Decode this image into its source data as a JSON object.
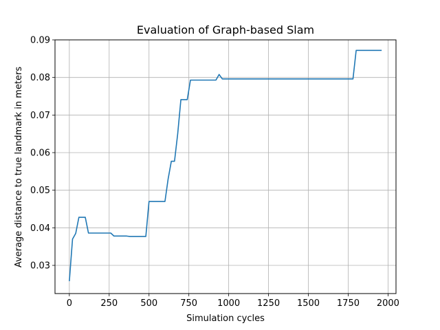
{
  "chart_data": {
    "type": "line",
    "title": "Evaluation of Graph-based Slam",
    "xlabel": "Simulation cycles",
    "ylabel": "Average distance to true landmark in meters",
    "xlim": [
      -90,
      2050
    ],
    "ylim": [
      0.0225,
      0.09
    ],
    "xticks": [
      0,
      250,
      500,
      750,
      1000,
      1250,
      1500,
      1750,
      2000
    ],
    "yticks": [
      0.03,
      0.04,
      0.05,
      0.06,
      0.07,
      0.08,
      0.09
    ],
    "xtick_labels": [
      "0",
      "250",
      "500",
      "750",
      "1000",
      "1250",
      "1500",
      "1750",
      "2000"
    ],
    "ytick_labels": [
      "0.03",
      "0.04",
      "0.05",
      "0.06",
      "0.07",
      "0.08",
      "0.09"
    ],
    "grid": true,
    "line_color": "#1f77b4",
    "series": [
      {
        "x": [
          0,
          20,
          40,
          60,
          80,
          100,
          120,
          140,
          160,
          180,
          200,
          220,
          240,
          260,
          280,
          300,
          320,
          340,
          360,
          380,
          400,
          420,
          440,
          460,
          480,
          500,
          520,
          540,
          560,
          580,
          600,
          620,
          640,
          660,
          680,
          700,
          720,
          740,
          760,
          780,
          800,
          820,
          840,
          860,
          880,
          900,
          920,
          940,
          960,
          980,
          1000,
          1100,
          1200,
          1300,
          1400,
          1500,
          1600,
          1700,
          1760,
          1780,
          1800,
          1820,
          1840,
          1860,
          1880,
          1900,
          1920,
          1940,
          1960
        ],
        "y": [
          0.0258,
          0.037,
          0.0385,
          0.0428,
          0.0428,
          0.0428,
          0.0386,
          0.0386,
          0.0386,
          0.0386,
          0.0386,
          0.0386,
          0.0386,
          0.0386,
          0.0378,
          0.0378,
          0.0378,
          0.0378,
          0.0378,
          0.0377,
          0.0377,
          0.0377,
          0.0377,
          0.0377,
          0.0377,
          0.047,
          0.047,
          0.047,
          0.047,
          0.047,
          0.047,
          0.053,
          0.0577,
          0.0577,
          0.065,
          0.0741,
          0.0741,
          0.0741,
          0.0793,
          0.0793,
          0.0793,
          0.0793,
          0.0793,
          0.0793,
          0.0793,
          0.0793,
          0.0793,
          0.0808,
          0.0796,
          0.0796,
          0.0796,
          0.0796,
          0.0796,
          0.0796,
          0.0796,
          0.0796,
          0.0796,
          0.0796,
          0.0796,
          0.0796,
          0.0872,
          0.0872,
          0.0872,
          0.0872,
          0.0872,
          0.0872,
          0.0872,
          0.0872,
          0.0872
        ]
      }
    ]
  }
}
